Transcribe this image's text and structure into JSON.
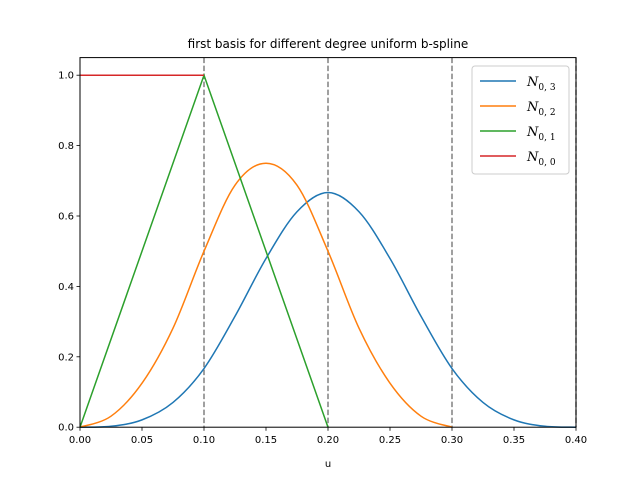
{
  "chart_data": {
    "type": "line",
    "title": "first basis for different degree uniform b-spline",
    "xlabel": "u",
    "ylabel": "",
    "xlim": [
      0.0,
      0.4
    ],
    "ylim": [
      0.0,
      1.05
    ],
    "x_ticks": [
      "0.00",
      "0.05",
      "0.10",
      "0.15",
      "0.20",
      "0.25",
      "0.30",
      "0.35",
      "0.40"
    ],
    "y_ticks": [
      "0.0",
      "0.2",
      "0.4",
      "0.6",
      "0.8",
      "1.0"
    ],
    "grid": false,
    "legend_position": "upper right",
    "knot_lines": [
      0.1,
      0.2,
      0.3,
      0.4
    ],
    "series": [
      {
        "name": "N_{0,3}",
        "label_main": "N",
        "label_sub": "0, 3",
        "color": "#1f77b4",
        "x": [
          0.0,
          0.025,
          0.05,
          0.075,
          0.1,
          0.125,
          0.15,
          0.175,
          0.2,
          0.225,
          0.25,
          0.275,
          0.3,
          0.325,
          0.35,
          0.375,
          0.4
        ],
        "y": [
          0.0,
          0.0026,
          0.0208,
          0.0703,
          0.1667,
          0.3151,
          0.4792,
          0.612,
          0.6667,
          0.612,
          0.4792,
          0.3151,
          0.1667,
          0.0703,
          0.0208,
          0.0026,
          0.0
        ]
      },
      {
        "name": "N_{0,2}",
        "label_main": "N",
        "label_sub": "0, 2",
        "color": "#ff7f0e",
        "x": [
          0.0,
          0.025,
          0.05,
          0.075,
          0.1,
          0.125,
          0.15,
          0.175,
          0.2,
          0.225,
          0.25,
          0.275,
          0.3
        ],
        "y": [
          0.0,
          0.0313,
          0.125,
          0.2813,
          0.5,
          0.6875,
          0.75,
          0.6875,
          0.5,
          0.2813,
          0.125,
          0.0313,
          0.0
        ]
      },
      {
        "name": "N_{0,1}",
        "label_main": "N",
        "label_sub": "0, 1",
        "color": "#2ca02c",
        "x": [
          0.0,
          0.1,
          0.2
        ],
        "y": [
          0.0,
          1.0,
          0.0
        ]
      },
      {
        "name": "N_{0,0}",
        "label_main": "N",
        "label_sub": "0, 0",
        "color": "#d62728",
        "x": [
          0.0,
          0.1
        ],
        "y": [
          1.0,
          1.0
        ]
      }
    ]
  }
}
